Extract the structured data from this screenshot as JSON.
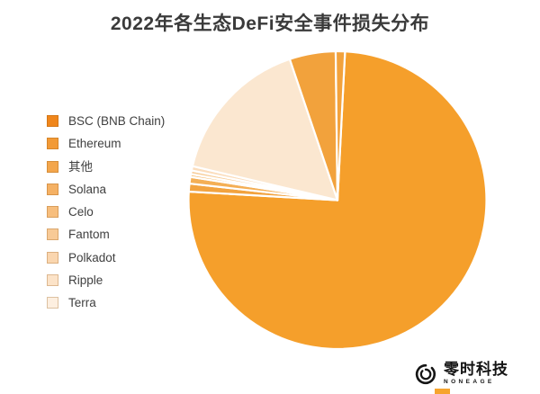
{
  "title": "2022年各生态DeFi安全事件损失分布",
  "legend": {
    "items": [
      {
        "key": "bsc",
        "label": "BSC (BNB Chain)",
        "color": "#F0861B"
      },
      {
        "key": "ethereum",
        "label": "Ethereum",
        "color": "#F29A36"
      },
      {
        "key": "other",
        "label": "其他",
        "color": "#F3A64C"
      },
      {
        "key": "solana",
        "label": "Solana",
        "color": "#F5B164"
      },
      {
        "key": "celo",
        "label": "Celo",
        "color": "#F7BE7D"
      },
      {
        "key": "fantom",
        "label": "Fantom",
        "color": "#F8CA96"
      },
      {
        "key": "polkadot",
        "label": "Polkadot",
        "color": "#FAD6AF"
      },
      {
        "key": "ripple",
        "label": "Ripple",
        "color": "#FCE3C8"
      },
      {
        "key": "terra",
        "label": "Terra",
        "color": "#FDEFE0"
      }
    ]
  },
  "chart_data": {
    "type": "pie",
    "title": "2022年各生态DeFi安全事件损失分布",
    "legend_position": "left",
    "direction": "clockwise",
    "start_deg_from_12_oclock": 2.9,
    "slices": [
      {
        "key": "bsc",
        "label": "BSC (BNB Chain)",
        "value_pct": 75.1,
        "deg": 270.4,
        "color": "#F59F2B"
      },
      {
        "key": "ethereum",
        "label": "Ethereum",
        "value_pct": 0.9,
        "deg": 3.1,
        "color": "#F2A33F"
      },
      {
        "key": "other",
        "label": "其他",
        "value_pct": 0.7,
        "deg": 2.6,
        "color": "#F4AF55"
      },
      {
        "key": "solana",
        "label": "Solana",
        "value_pct": 0.3,
        "deg": 1.1,
        "color": "#F6BA6B"
      },
      {
        "key": "celo",
        "label": "Celo",
        "value_pct": 0.4,
        "deg": 1.4,
        "color": "#F8CD99"
      },
      {
        "key": "fantom",
        "label": "Fantom",
        "value_pct": 0.5,
        "deg": 1.7,
        "color": "#FBDDBC"
      },
      {
        "key": "polkadot",
        "label": "Polkadot",
        "value_pct": 16.1,
        "deg": 58.1,
        "color": "#FBE7D0"
      },
      {
        "key": "ripple",
        "label": "Ripple",
        "value_pct": 5.0,
        "deg": 18.0,
        "color": "#F2A23C"
      },
      {
        "key": "terra",
        "label": "Terra",
        "value_pct": 1.0,
        "deg": 3.6,
        "color": "#F2A23C"
      }
    ]
  },
  "logo": {
    "name": "零时科技",
    "subtext": "NONEAGE"
  }
}
